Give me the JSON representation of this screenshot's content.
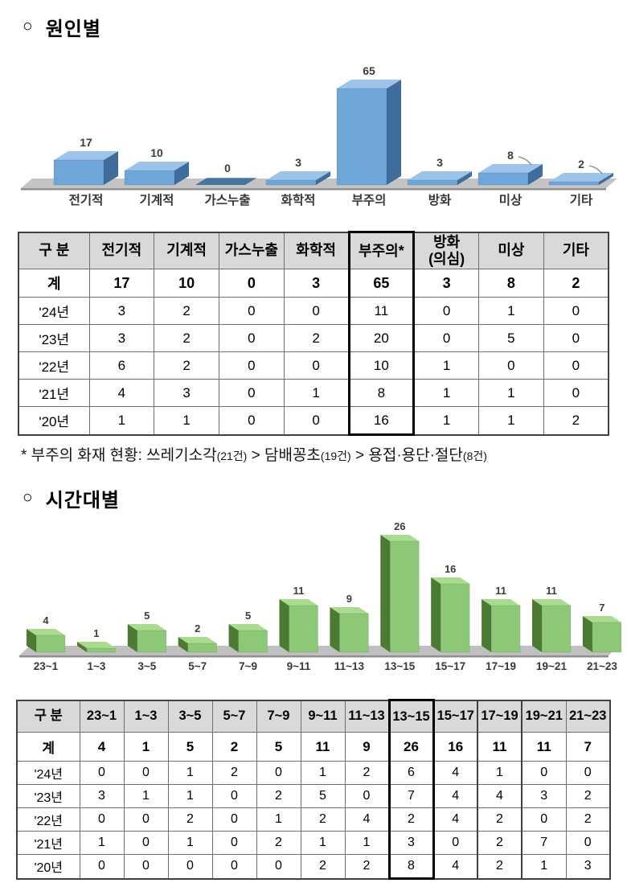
{
  "sections": {
    "cause": {
      "bullet": "○",
      "title": "원인별"
    },
    "time": {
      "bullet": "○",
      "title": "시간대별"
    }
  },
  "note": {
    "segments": [
      {
        "text": "* 부주의 화재 현황: 쓰레기소각",
        "small": false
      },
      {
        "text": "(21건)",
        "small": true
      },
      {
        "text": " > 담배꽁초",
        "small": false
      },
      {
        "text": "(19건)",
        "small": true
      },
      {
        "text": " > 용접·용단·절단",
        "small": false
      },
      {
        "text": "(8건)",
        "small": true
      }
    ]
  },
  "chart_data": [
    {
      "type": "bar",
      "title": "원인별",
      "categories": [
        "전기적",
        "기계적",
        "가스누출",
        "화학적",
        "부주의",
        "방화",
        "미상",
        "기타"
      ],
      "values": [
        17,
        10,
        0,
        3,
        65,
        3,
        8,
        2
      ],
      "xlabel": "",
      "ylabel": "",
      "ylim": [
        0,
        70
      ],
      "grid": false,
      "legend": "none",
      "axes_hidden": true,
      "style": "3d-bar",
      "leader_line_indices": [
        6,
        7
      ],
      "colors": {
        "front": "#6FA6DA",
        "side": "#3E6D9C",
        "top": "#9CC4EA",
        "zero_pad": "#46759F",
        "floor": "#C4C4C4",
        "floor_edge": "#8F8F8F",
        "value_label": "#3d3d3d",
        "category_label": "#383838"
      }
    },
    {
      "type": "bar",
      "title": "시간대별",
      "categories": [
        "23~1",
        "1~3",
        "3~5",
        "5~7",
        "7~9",
        "9~11",
        "11~13",
        "13~15",
        "15~17",
        "17~19",
        "19~21",
        "21~23"
      ],
      "values": [
        4,
        1,
        5,
        2,
        5,
        11,
        9,
        26,
        16,
        11,
        11,
        7
      ],
      "xlabel": "",
      "ylabel": "",
      "ylim": [
        0,
        28
      ],
      "grid": false,
      "legend": "none",
      "axes_hidden": true,
      "style": "3d-bar",
      "leader_line_indices": [],
      "colors": {
        "front": "#8CC876",
        "side": "#4B7A33",
        "top": "#A9DC91",
        "zero_pad": "#4B7A33",
        "floor": "#C0C0C0",
        "floor_edge": "#8F8F8F",
        "value_label": "#3d3d3d",
        "category_label": "#383838"
      }
    }
  ],
  "tables": [
    {
      "id": "table-cause",
      "columns": [
        "구 분",
        "전기적",
        "기계적",
        "가스누출",
        "화학적",
        "부주의*",
        "방화\n(의심)",
        "미상",
        "기타"
      ],
      "rows": [
        [
          "계",
          "17",
          "10",
          "0",
          "3",
          "65",
          "3",
          "8",
          "2"
        ],
        [
          "'24년",
          "3",
          "2",
          "0",
          "0",
          "11",
          "0",
          "1",
          "0"
        ],
        [
          "'23년",
          "3",
          "2",
          "0",
          "2",
          "20",
          "0",
          "5",
          "0"
        ],
        [
          "'22년",
          "6",
          "2",
          "0",
          "0",
          "10",
          "1",
          "0",
          "0"
        ],
        [
          "'21년",
          "4",
          "3",
          "0",
          "1",
          "8",
          "1",
          "1",
          "0"
        ],
        [
          "'20년",
          "1",
          "1",
          "0",
          "0",
          "16",
          "1",
          "1",
          "2"
        ]
      ],
      "total_row_index": 0,
      "highlight_columns": [
        {
          "index": 5,
          "weight": "strong"
        }
      ]
    },
    {
      "id": "table-time",
      "columns": [
        "구 분",
        "23~1",
        "1~3",
        "3~5",
        "5~7",
        "7~9",
        "9~11",
        "11~13",
        "13~15",
        "15~17",
        "17~19",
        "19~21",
        "21~23"
      ],
      "rows": [
        [
          "계",
          "4",
          "1",
          "5",
          "2",
          "5",
          "11",
          "9",
          "26",
          "16",
          "11",
          "11",
          "7"
        ],
        [
          "'24년",
          "0",
          "0",
          "1",
          "2",
          "0",
          "1",
          "2",
          "6",
          "4",
          "1",
          "0",
          "0"
        ],
        [
          "'23년",
          "3",
          "1",
          "1",
          "0",
          "2",
          "5",
          "0",
          "7",
          "4",
          "4",
          "3",
          "2"
        ],
        [
          "'22년",
          "0",
          "0",
          "2",
          "0",
          "1",
          "2",
          "4",
          "2",
          "4",
          "2",
          "0",
          "2"
        ],
        [
          "'21년",
          "1",
          "0",
          "1",
          "0",
          "2",
          "1",
          "1",
          "3",
          "0",
          "2",
          "7",
          "0"
        ],
        [
          "'20년",
          "0",
          "0",
          "0",
          "0",
          "0",
          "2",
          "2",
          "8",
          "4",
          "2",
          "1",
          "3"
        ]
      ],
      "total_row_index": 0,
      "highlight_columns": [
        {
          "index": 8,
          "weight": "strong"
        },
        {
          "index": 10,
          "weight": "medium"
        }
      ]
    }
  ]
}
